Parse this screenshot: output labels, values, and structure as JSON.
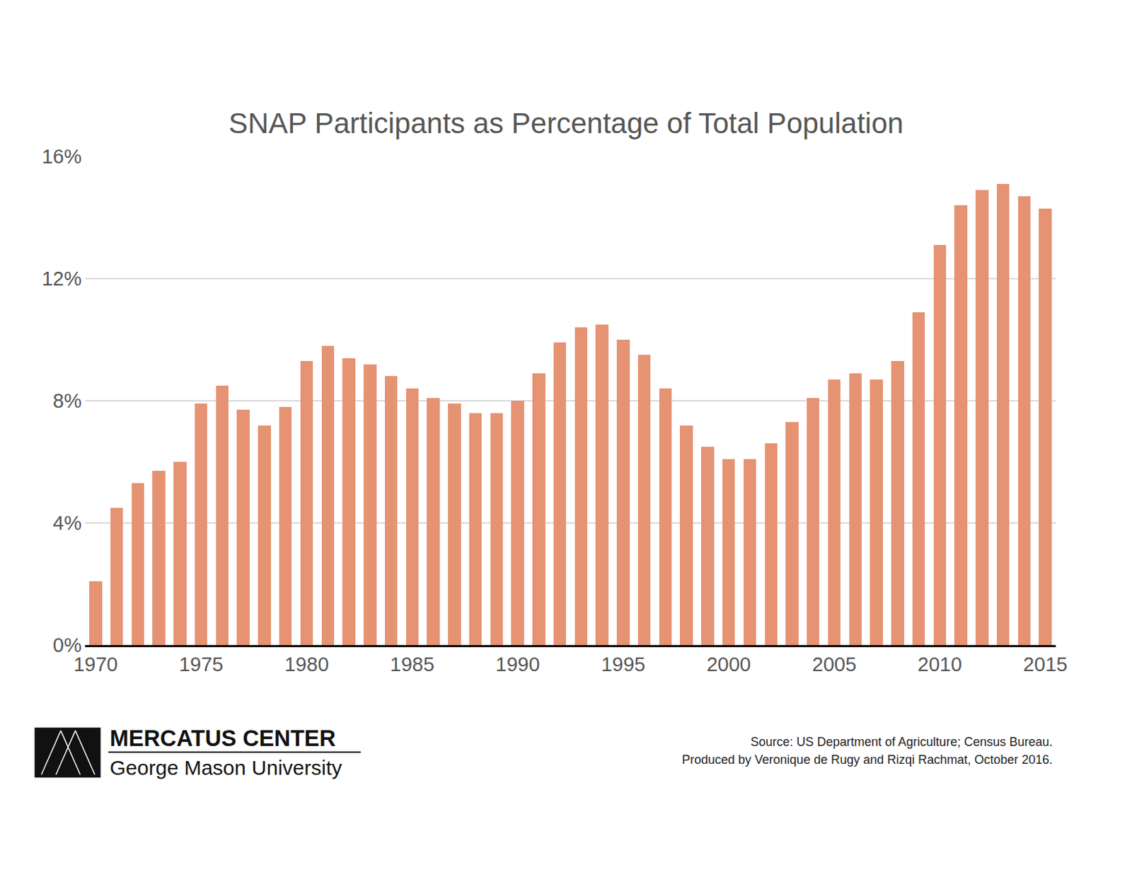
{
  "chart_data": {
    "type": "bar",
    "title": "SNAP Participants as Percentage of Total Population",
    "x": [
      1970,
      1971,
      1972,
      1973,
      1974,
      1975,
      1976,
      1977,
      1978,
      1979,
      1980,
      1981,
      1982,
      1983,
      1984,
      1985,
      1986,
      1987,
      1988,
      1989,
      1990,
      1991,
      1992,
      1993,
      1994,
      1995,
      1996,
      1997,
      1998,
      1999,
      2000,
      2001,
      2002,
      2003,
      2004,
      2005,
      2006,
      2007,
      2008,
      2009,
      2010,
      2011,
      2012,
      2013,
      2014,
      2015
    ],
    "values": [
      2.1,
      4.5,
      5.3,
      5.7,
      6.0,
      7.9,
      8.5,
      7.7,
      7.2,
      7.8,
      9.3,
      9.8,
      9.4,
      9.2,
      8.8,
      8.4,
      8.1,
      7.9,
      7.6,
      7.6,
      8.0,
      8.9,
      9.9,
      10.4,
      10.5,
      10.0,
      9.5,
      8.4,
      7.2,
      6.5,
      6.1,
      6.1,
      6.6,
      7.3,
      8.1,
      8.7,
      8.9,
      8.7,
      9.3,
      10.9,
      13.1,
      14.4,
      14.9,
      15.1,
      14.7,
      14.3
    ],
    "color": "#e59373",
    "xlim": [
      1969.5,
      2015.5
    ],
    "xticks": [
      1970,
      1975,
      1980,
      1985,
      1990,
      1995,
      2000,
      2005,
      2010,
      2015
    ],
    "ylim": [
      0,
      16
    ],
    "yticks": [
      {
        "value": 0,
        "label": "0%"
      },
      {
        "value": 4,
        "label": "4%"
      },
      {
        "value": 8,
        "label": "8%"
      },
      {
        "value": 12,
        "label": "12%"
      },
      {
        "value": 16,
        "label": "16%"
      }
    ],
    "grid": true,
    "source": "Source: US Department of Agriculture; Census Bureau.",
    "credit": "Produced by Veronique de Rugy and Rizqi Rachmat, October 2016.",
    "logo": [
      "MERCATUS CENTER",
      "George Mason University"
    ]
  }
}
